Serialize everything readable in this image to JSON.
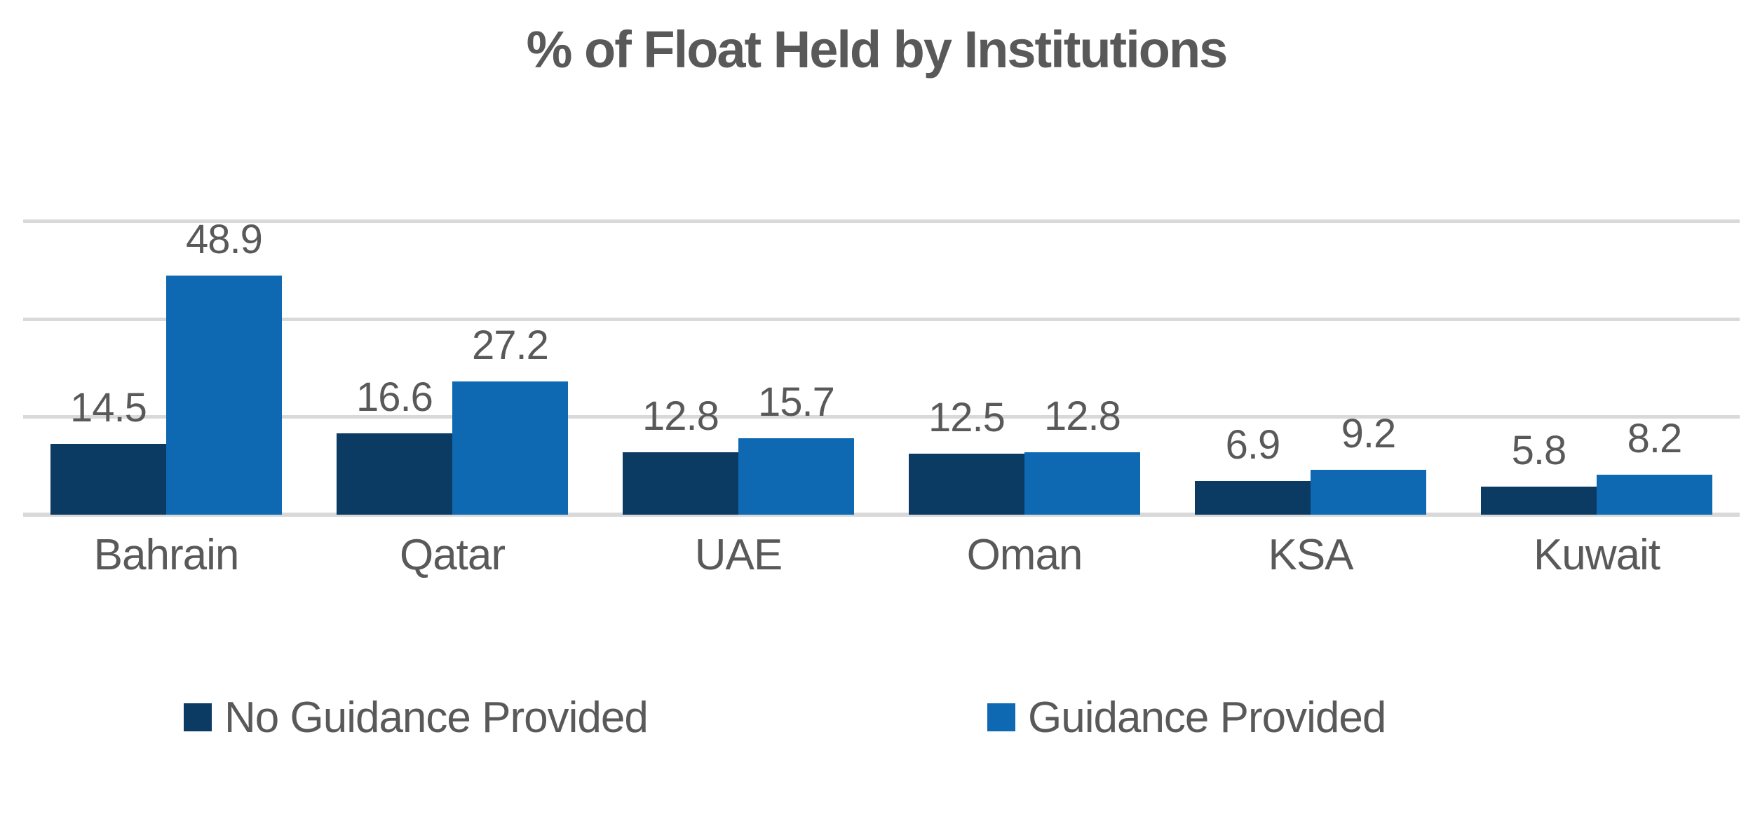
{
  "chart_data": {
    "type": "bar",
    "title": "% of Float Held by Institutions",
    "categories": [
      "Bahrain",
      "Qatar",
      "UAE",
      "Oman",
      "KSA",
      "Kuwait"
    ],
    "series": [
      {
        "name": "No Guidance Provided",
        "color": "#0B3A63",
        "values": [
          14.5,
          16.6,
          12.8,
          12.5,
          6.9,
          5.8
        ]
      },
      {
        "name": "Guidance Provided",
        "color": "#0E69B2",
        "values": [
          48.9,
          27.2,
          15.7,
          12.8,
          9.2,
          8.2
        ]
      }
    ],
    "ylim": [
      0,
      60
    ],
    "gridlines": [
      0,
      20,
      40,
      60
    ],
    "grid_on": true,
    "y_axis_labels_visible": false,
    "data_labels_visible": true,
    "legend_position": "bottom",
    "colors": {
      "text": "#595959",
      "gridline": "#D9D9D9",
      "background": "#FFFFFF"
    }
  }
}
